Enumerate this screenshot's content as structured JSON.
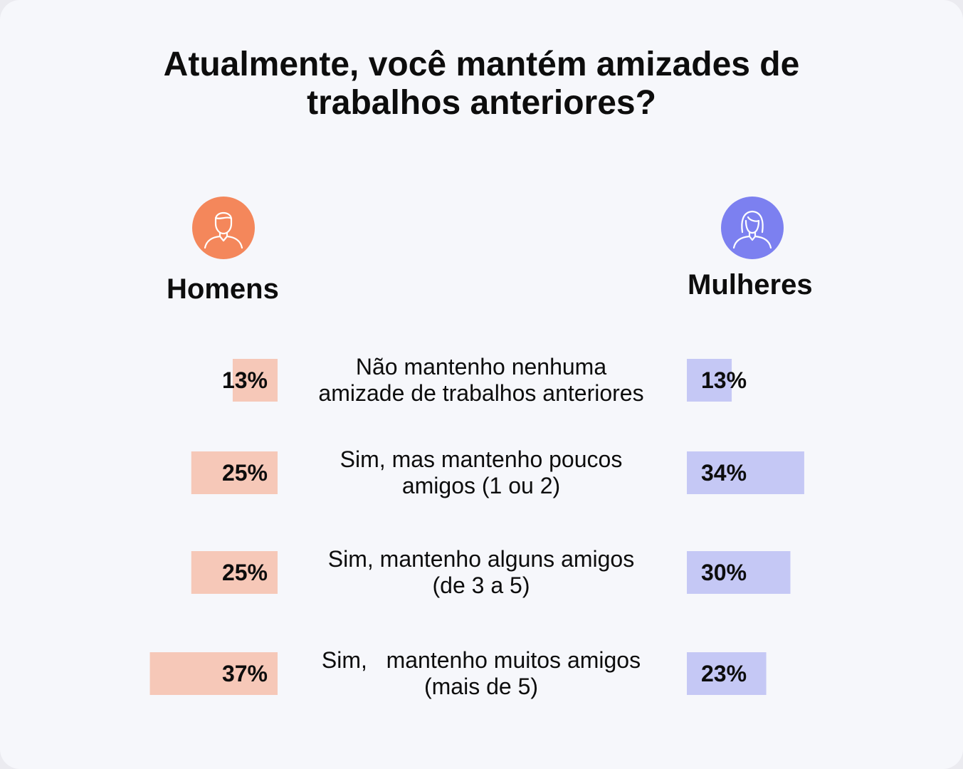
{
  "title_line1": "Atualmente, você mantém amizades de",
  "title_line2": "trabalhos anteriores?",
  "groups": {
    "men": {
      "label": "Homens",
      "icon": "man-avatar-icon",
      "accent": "#f4875b",
      "bar_color": "#f6c8b8"
    },
    "women": {
      "label": "Mulheres",
      "icon": "woman-avatar-icon",
      "accent": "#7c80f0",
      "bar_color": "#c5c8f5"
    }
  },
  "chart_data": {
    "type": "bar",
    "categories": [
      [
        "Não mantenho nenhuma",
        "amizade de trabalhos anteriores"
      ],
      [
        "Sim, mas mantenho poucos",
        "amigos (1 ou 2)"
      ],
      [
        "Sim, mantenho alguns amigos",
        "(de 3 a 5)"
      ],
      [
        "Sim,   mantenho muitos amigos",
        "(mais de 5)"
      ]
    ],
    "series": [
      {
        "name": "Homens",
        "values": [
          13,
          25,
          25,
          37
        ],
        "labels": [
          "13%",
          "25%",
          "25%",
          "37%"
        ]
      },
      {
        "name": "Mulheres",
        "values": [
          13,
          34,
          30,
          23
        ],
        "labels": [
          "13%",
          "34%",
          "30%",
          "23%"
        ]
      }
    ]
  }
}
